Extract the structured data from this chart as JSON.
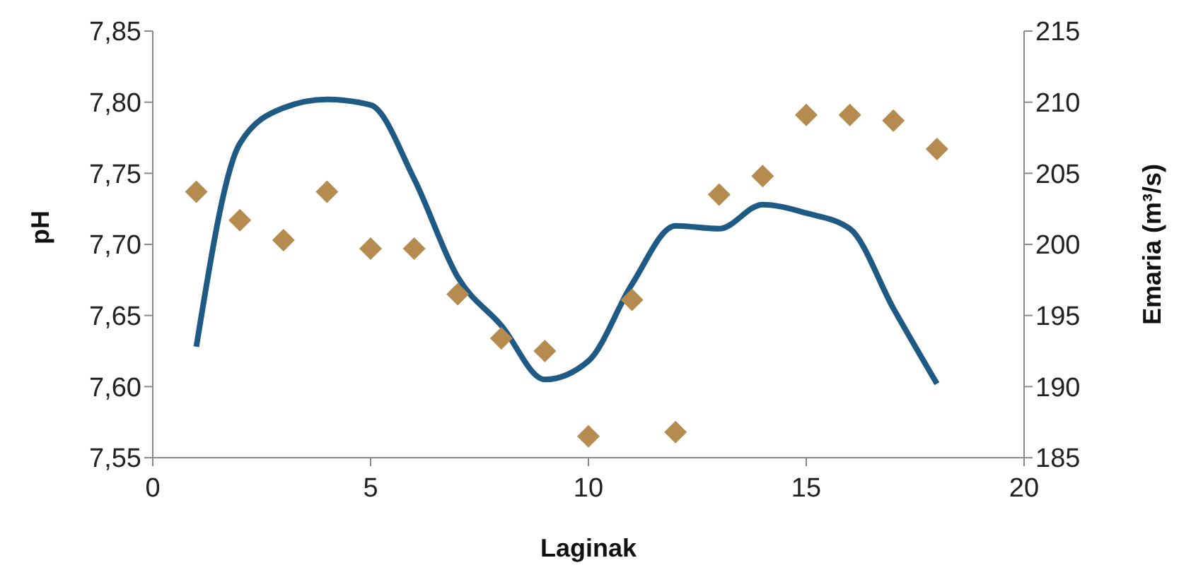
{
  "chart_data": {
    "type": "scatter",
    "xlabel": "Laginak",
    "ylabel": "pH",
    "y2label": "Emaria (m³/s)",
    "x": [
      1,
      2,
      3,
      4,
      5,
      6,
      7,
      8,
      9,
      10,
      11,
      12,
      13,
      14,
      15,
      16,
      17,
      18
    ],
    "series": [
      {
        "color": "#b58b4f",
        "marker": "diamond",
        "values": [
          7.737,
          7.717,
          7.703,
          7.737,
          7.697,
          7.697,
          7.665,
          7.634,
          7.625,
          7.565,
          7.661,
          7.568,
          7.735,
          7.748,
          7.791,
          7.791,
          7.787,
          7.767
        ]
      },
      {
        "type": "line",
        "axis": "y2",
        "color": "#1f5a85",
        "marker": "none",
        "line_style": "solid",
        "values": [
          192.8,
          207.1,
          209.6,
          210.2,
          209.8,
          204.6,
          197.7,
          194.3,
          190.5,
          191.8,
          197.2,
          201.3,
          201.1,
          202.8,
          202.2,
          201.1,
          195.5,
          190.2
        ]
      }
    ],
    "xlim": [
      0,
      20
    ],
    "xticks": [
      0,
      5,
      10,
      15,
      20
    ],
    "ylim": [
      7.55,
      7.85
    ],
    "yticks": [
      {
        "value": 7.55,
        "label": "7,55"
      },
      {
        "value": 7.6,
        "label": "7,60"
      },
      {
        "value": 7.65,
        "label": "7,65"
      },
      {
        "value": 7.7,
        "label": "7,70"
      },
      {
        "value": 7.75,
        "label": "7,75"
      },
      {
        "value": 7.8,
        "label": "7,80"
      },
      {
        "value": 7.85,
        "label": "7,85"
      }
    ],
    "y2lim": [
      185,
      215
    ],
    "y2ticks": [
      185,
      190,
      195,
      200,
      205,
      210,
      215
    ],
    "grid": false,
    "legend": false
  }
}
